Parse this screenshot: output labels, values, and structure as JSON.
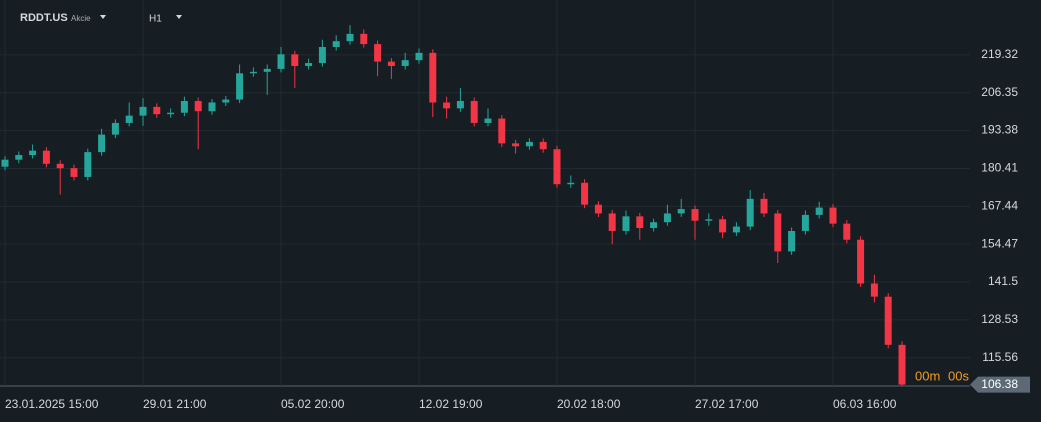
{
  "header": {
    "symbol": "RDDT.US",
    "asset_class": "Akcie",
    "timeframe": "H1"
  },
  "chart_data": {
    "type": "candlestick",
    "categories": [
      "23.01.2025 15:00",
      null,
      null,
      null,
      null,
      null,
      null,
      null,
      null,
      null,
      "29.01 21:00",
      null,
      null,
      null,
      null,
      null,
      null,
      null,
      null,
      null,
      "05.02 20:00",
      null,
      null,
      null,
      null,
      null,
      null,
      null,
      null,
      null,
      "12.02 19:00",
      null,
      null,
      null,
      null,
      null,
      null,
      null,
      null,
      null,
      "20.02 18:00",
      null,
      null,
      null,
      null,
      null,
      null,
      null,
      null,
      null,
      "27.02 17:00",
      null,
      null,
      null,
      null,
      null,
      null,
      null,
      null,
      null,
      "06.03 16:00",
      null,
      null,
      null,
      null,
      null
    ],
    "open": [
      181,
      183.4,
      185,
      186.5,
      182,
      180.5,
      177.5,
      186,
      192,
      196,
      198.5,
      201.5,
      199,
      199.5,
      203.5,
      200,
      203,
      204,
      213,
      213.5,
      214.5,
      219.5,
      215.5,
      216.5,
      222,
      224,
      226.5,
      223,
      217,
      215.5,
      217.5,
      220,
      203,
      201,
      203.5,
      196,
      197.5,
      189,
      188,
      189.5,
      187,
      175,
      175.5,
      168,
      165,
      159,
      164,
      160,
      162,
      165,
      166.5,
      162.5,
      163,
      158.5,
      160.5,
      170,
      165,
      152,
      159,
      164.5,
      167,
      161.5,
      156,
      141,
      136.5,
      120
    ],
    "high": [
      184.6,
      186.2,
      188.6,
      187.7,
      183.2,
      181.7,
      187.2,
      194,
      197.2,
      203,
      204.5,
      202.7,
      201,
      205,
      204.7,
      204.2,
      205.2,
      216,
      215,
      216,
      222,
      220.7,
      218,
      224.5,
      226,
      229.5,
      228,
      224.2,
      218.2,
      220,
      221.5,
      221.2,
      205,
      208,
      204.7,
      201,
      198.7,
      190.2,
      190.7,
      190.7,
      188.2,
      178,
      176.7,
      169.2,
      166.2,
      166,
      165.2,
      163.2,
      168,
      170,
      167.7,
      165,
      164.2,
      162,
      173,
      172,
      166.2,
      160.2,
      166,
      169,
      168.2,
      162.7,
      157.2,
      144,
      137.7,
      121.2
    ],
    "low": [
      179.8,
      182.2,
      183.8,
      180.8,
      171.5,
      176.3,
      176.3,
      184.8,
      190.8,
      194.8,
      195,
      197.8,
      197.8,
      198.3,
      187,
      198.8,
      201.8,
      202.8,
      211.8,
      205.6,
      213.3,
      208,
      214.3,
      215.3,
      220.8,
      222.8,
      221.8,
      212,
      211,
      214.3,
      216.3,
      198,
      197.5,
      199.8,
      194.8,
      194.8,
      187.8,
      185.5,
      186.8,
      185.8,
      173.8,
      173.8,
      166.8,
      163.8,
      154.5,
      157.8,
      156,
      158.8,
      160.8,
      163.8,
      156,
      160.8,
      156.5,
      157.3,
      159.3,
      163.8,
      148,
      150.8,
      157.8,
      163.3,
      160.3,
      154.8,
      139.8,
      134.5,
      118.8,
      106
    ],
    "close": [
      183.4,
      185,
      186.5,
      182,
      180.5,
      177.5,
      186,
      192,
      196,
      198.5,
      201.5,
      199,
      199.5,
      203.5,
      200,
      203,
      204,
      213,
      213.5,
      214.5,
      219.5,
      215.5,
      216.5,
      222,
      224,
      226.5,
      223,
      217,
      215.5,
      217.5,
      220,
      203,
      201,
      203.5,
      196,
      197.5,
      189,
      188,
      189.5,
      187,
      175,
      175.5,
      168,
      165,
      159,
      164,
      160,
      162,
      165,
      166.5,
      162.5,
      163,
      158.5,
      160.5,
      170,
      165,
      152,
      159,
      164.5,
      167,
      161.5,
      156,
      141,
      136.5,
      120,
      106.38
    ],
    "up_color": "#26a69a",
    "down_color": "#f23645",
    "ylim": [
      105.9,
      238.1
    ],
    "yticks": [
      115.56,
      128.53,
      141.5,
      154.47,
      167.44,
      180.41,
      193.38,
      206.35,
      219.32
    ],
    "grid": true,
    "countdown_minutes": "00m",
    "countdown_seconds": "00s"
  }
}
